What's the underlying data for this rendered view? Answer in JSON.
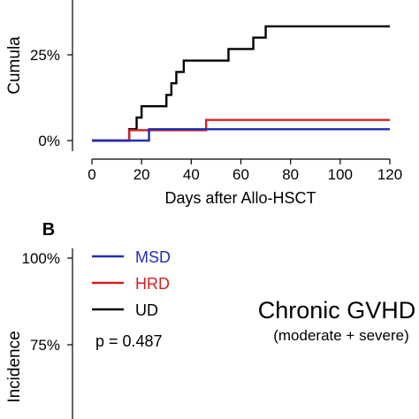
{
  "chart_data": [
    {
      "panel_label": "",
      "type": "line",
      "step": true,
      "title": "",
      "xlabel": "Days after Allo-HSCT",
      "ylabel": "Cumula",
      "xlim": [
        0,
        120
      ],
      "ylim": [
        0,
        0.36
      ],
      "xticks": [
        0,
        20,
        40,
        60,
        80,
        100,
        120
      ],
      "xtick_labels": [
        "0",
        "20",
        "40",
        "60",
        "80",
        "100",
        "120"
      ],
      "yticks": [
        0,
        0.25
      ],
      "ytick_labels": [
        "0%",
        "25%"
      ],
      "series": [
        {
          "color": "#000000",
          "x": [
            0,
            15,
            18,
            20,
            22,
            25,
            27,
            30,
            32,
            34,
            35,
            37,
            40,
            55,
            58,
            62,
            65,
            68,
            70,
            120
          ],
          "y": [
            0,
            0.033,
            0.067,
            0.1,
            0.1,
            0.1,
            0.1,
            0.133,
            0.167,
            0.2,
            0.2,
            0.233,
            0.233,
            0.267,
            0.267,
            0.267,
            0.3,
            0.3,
            0.333,
            0.333
          ]
        },
        {
          "color": "#d62020",
          "x": [
            0,
            15,
            22,
            25,
            46,
            120
          ],
          "y": [
            0,
            0.03,
            0.03,
            0.03,
            0.06,
            0.06
          ]
        },
        {
          "color": "#1f2fb4",
          "x": [
            0,
            15,
            23,
            120
          ],
          "y": [
            0,
            0,
            0.033,
            0.033
          ]
        }
      ]
    },
    {
      "panel_label": "B",
      "type": "line",
      "step": true,
      "title": "Chronic GVHD",
      "subtitle": "(moderate + severe)",
      "ylabel": "Incidence",
      "xlim": [
        0,
        120
      ],
      "ylim": [
        0.72,
        1.03
      ],
      "yticks": [
        1.0,
        0.75
      ],
      "ytick_labels": [
        "100%",
        "75%"
      ],
      "legend": [
        {
          "label": "MSD",
          "color": "#1f2fb4"
        },
        {
          "label": "HRD",
          "color": "#d62020"
        },
        {
          "label": "UD",
          "color": "#000000"
        }
      ],
      "annotation": "p = 0.487",
      "legend_position": "top-left"
    }
  ]
}
